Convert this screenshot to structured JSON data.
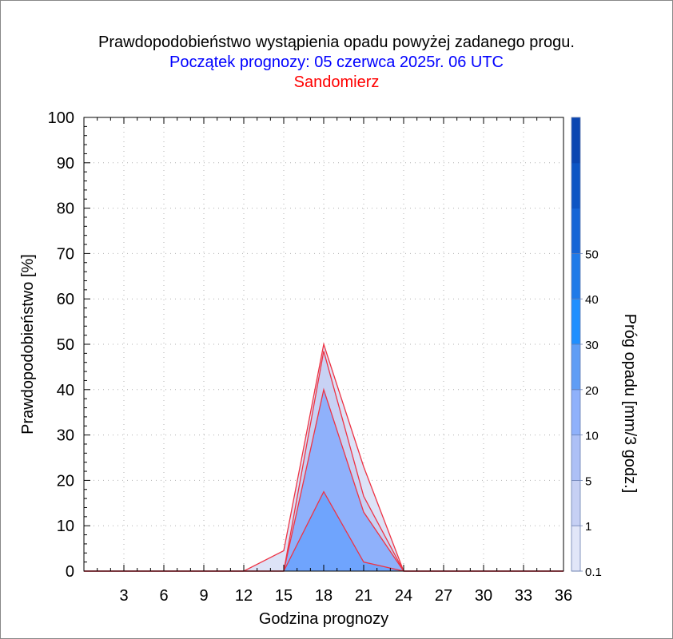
{
  "header": {
    "title": "Prawdopodobieństwo wystąpienia opadu powyżej zadanego progu.",
    "subtitle": "Początek prognozy: 05 czerwca 2025r. 06 UTC",
    "location": "Sandomierz"
  },
  "chart_data": {
    "type": "area",
    "title": "Prawdopodobieństwo wystąpienia opadu powyżej zadanego progu.",
    "subtitle": "Początek prognozy: 05 czerwca 2025r. 06 UTC",
    "location": "Sandomierz",
    "xlabel": "Godzina prognozy",
    "ylabel": "Prawdopodobieństwo [%]",
    "colorbar_label": "Próg opadu [mm/3 godz.]",
    "xlim": [
      0,
      36
    ],
    "ylim": [
      0,
      100
    ],
    "x_ticks": [
      3,
      6,
      9,
      12,
      15,
      18,
      21,
      24,
      27,
      30,
      33,
      36
    ],
    "y_ticks": [
      0,
      10,
      20,
      30,
      40,
      50,
      60,
      70,
      80,
      90,
      100
    ],
    "grid": true,
    "x": [
      0,
      3,
      6,
      9,
      12,
      15,
      18,
      21,
      24,
      27,
      30,
      33,
      36
    ],
    "series": [
      {
        "threshold": "0.1",
        "color": "#dde3f7",
        "values": [
          0,
          0,
          0,
          0,
          0,
          4.5,
          50,
          23,
          0,
          0,
          0,
          0,
          0
        ]
      },
      {
        "threshold": "1",
        "color": "#c8d2f4",
        "values": [
          0,
          0,
          0,
          0,
          0,
          0,
          48.5,
          16.5,
          0,
          0,
          0,
          0,
          0
        ]
      },
      {
        "threshold": "5",
        "color": "#8fb1fb",
        "values": [
          0,
          0,
          0,
          0,
          0,
          0,
          40,
          13,
          0,
          0,
          0,
          0,
          0
        ]
      },
      {
        "threshold": "10",
        "color": "#6fa4fd",
        "values": [
          0,
          0,
          0,
          0,
          0,
          0,
          17.5,
          2,
          0,
          0,
          0,
          0,
          0
        ]
      }
    ],
    "colorbar": {
      "labels": [
        "0.1",
        "1",
        "5",
        "10",
        "20",
        "30",
        "40",
        "50"
      ],
      "colors": [
        "#e1e6f8",
        "#c6d0f4",
        "#adc0f6",
        "#8fb1fb",
        "#5f9df5",
        "#1f8fff",
        "#1f7ae8",
        "#1565d6",
        "#0d55c4",
        "#0b46b1"
      ]
    }
  }
}
